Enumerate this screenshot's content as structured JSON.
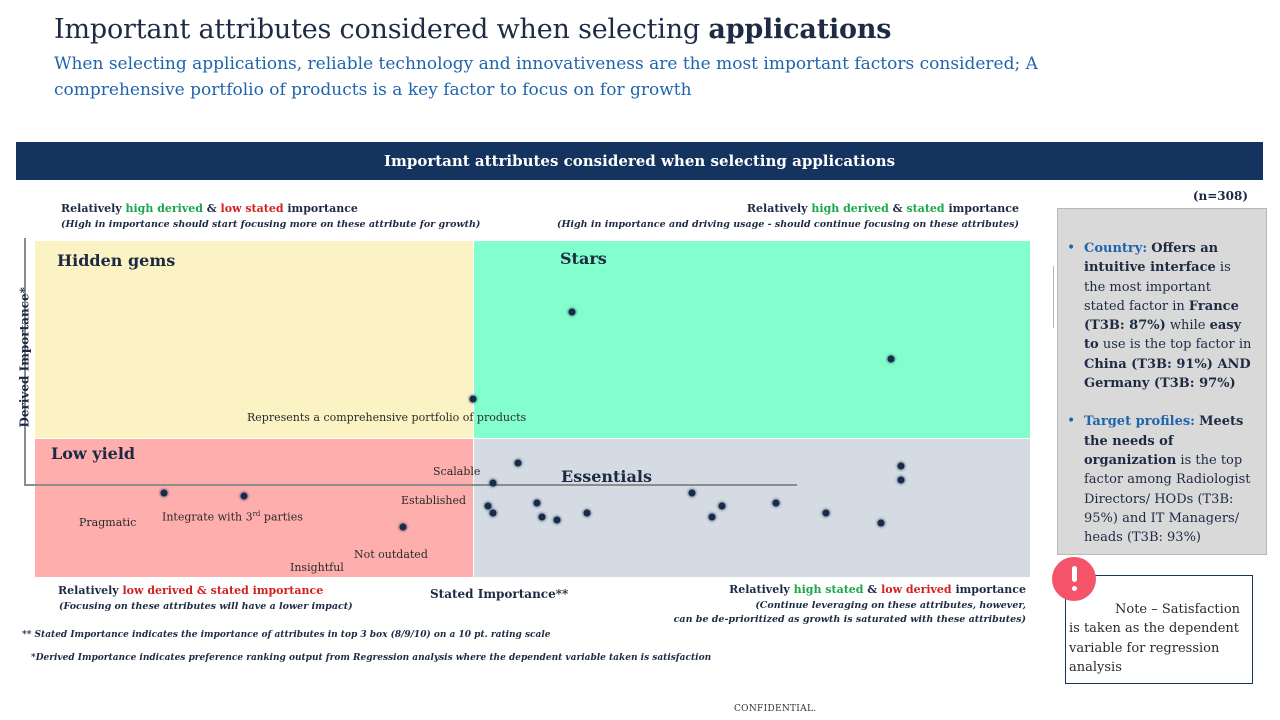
{
  "header": {
    "title_prefix": "Important attributes considered when selecting ",
    "title_bold": "applications",
    "subtitle": "When selecting applications, reliable technology and innovativeness are the most important factors considered; A comprehensive portfolio of products is a key factor to focus on for growth"
  },
  "banner": "Important attributes considered when selecting applications",
  "sample_size": "(n=308)",
  "corners": {
    "top_left": {
      "pre": "Relatively ",
      "g": "high derived",
      "mid": " & ",
      "r": "low stated",
      "post": " importance",
      "sub": "(High in importance should start focusing more on these attribute for growth)"
    },
    "top_right": {
      "pre": "Relatively ",
      "g": "high derived",
      "mid": " & ",
      "g2": "stated",
      "post": " importance",
      "sub": "(High in importance and driving usage - should continue focusing on these attributes)"
    },
    "bottom_left": {
      "pre": "Relatively ",
      "r": "low derived & stated importance",
      "sub": "(Focusing on these attributes will have a lower impact)"
    },
    "bottom_right": {
      "pre": "Relatively ",
      "g": "high stated",
      "mid": " & ",
      "r": "low derived",
      "post": " importance",
      "sub1": "(Continue leveraging on these attributes, however,",
      "sub2": "can be de-prioritized as growth is saturated with these attributes)"
    }
  },
  "quadrants": {
    "hidden_gems": "Hidden gems",
    "stars": "Stars",
    "low_yield": "Low yield",
    "essentials": "Essentials"
  },
  "chart_data": {
    "type": "scatter",
    "xlabel": "Stated Importance**",
    "ylabel": "Derived Importance*",
    "quadrant_colors": {
      "hidden_gems": "#fbf3c3",
      "stars": "#82ffcc",
      "low_yield": "#ffaeae",
      "essentials": "#d4dbe2"
    },
    "point_color": "#1b2a48",
    "points": [
      {
        "label": "",
        "sx": 0.54,
        "dy": 0.79
      },
      {
        "label": "",
        "sx": 0.86,
        "dy": 0.65
      },
      {
        "label": "Represents a comprehensive portfolio of products",
        "sx": 0.44,
        "dy": 0.53
      },
      {
        "label": "Scalable",
        "sx": 0.485,
        "dy": 0.34
      },
      {
        "label": "",
        "sx": 0.87,
        "dy": 0.33
      },
      {
        "label": "",
        "sx": 0.87,
        "dy": 0.29
      },
      {
        "label": "Established",
        "sx": 0.46,
        "dy": 0.28
      },
      {
        "label": "Pragmatic",
        "sx": 0.13,
        "dy": 0.25
      },
      {
        "label": "Integrate with 3rd parties",
        "sx": 0.21,
        "dy": 0.24
      },
      {
        "label": "",
        "sx": 0.66,
        "dy": 0.25
      },
      {
        "label": "",
        "sx": 0.505,
        "dy": 0.22
      },
      {
        "label": "",
        "sx": 0.745,
        "dy": 0.22
      },
      {
        "label": "",
        "sx": 0.69,
        "dy": 0.21
      },
      {
        "label": "",
        "sx": 0.455,
        "dy": 0.21
      },
      {
        "label": "",
        "sx": 0.555,
        "dy": 0.19
      },
      {
        "label": "",
        "sx": 0.795,
        "dy": 0.19
      },
      {
        "label": "Not outdated",
        "sx": 0.46,
        "dy": 0.19
      },
      {
        "label": "",
        "sx": 0.68,
        "dy": 0.18
      },
      {
        "label": "",
        "sx": 0.51,
        "dy": 0.18
      },
      {
        "label": "",
        "sx": 0.525,
        "dy": 0.17
      },
      {
        "label": "",
        "sx": 0.85,
        "dy": 0.16
      },
      {
        "label": "Insightful",
        "sx": 0.37,
        "dy": 0.15
      }
    ]
  },
  "footnotes": {
    "stated": "** Stated Importance indicates the importance of attributes in top 3 box (8/9/10) on a 10 pt. rating scale",
    "derived": "*Derived Importance indicates preference ranking output from Regression analysis where the dependent variable taken is satisfaction"
  },
  "side_panel": {
    "b1": {
      "lead": "Country:",
      "t1": " ",
      "s1": "Offers an intuitive interface",
      "t2": " is the most important stated factor in ",
      "s2": "France (T3B: 87%)",
      "t3": " while ",
      "s3": "easy to",
      "t4": " use is the top factor in ",
      "s4": "China (T3B: 91%) AND Germany (T3B: 97%)"
    },
    "b2": {
      "lead": "Target profiles:",
      "t1": " ",
      "s1": "Meets the needs of organization",
      "t2": " is the top factor among Radiologist Directors/ HODs (T3B: 95%) and IT Managers/ heads (T3B: 93%)"
    }
  },
  "note": "Note – Satisfaction is taken as the dependent variable for regression analysis",
  "confidential": "CONFIDENTIAL."
}
